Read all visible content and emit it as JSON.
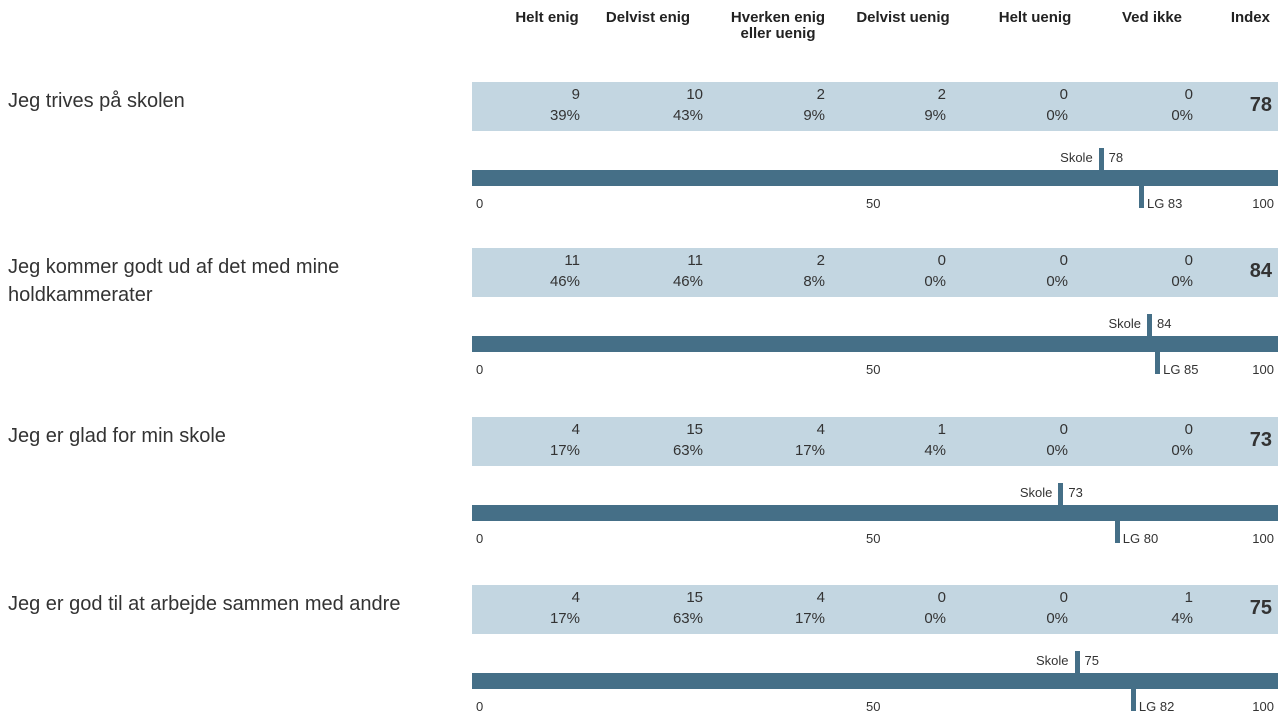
{
  "headers": {
    "helt_enig": "Helt enig",
    "delvist_enig": "Delvist enig",
    "hverken": "Hverken enig eller uenig",
    "delvist_uenig": "Delvist uenig",
    "helt_uenig": "Helt uenig",
    "ved_ikke": "Ved ikke",
    "index": "Index"
  },
  "gauge_labels": {
    "school": "Skole",
    "lg_prefix": "LG",
    "tick_0": "0",
    "tick_50": "50",
    "tick_100": "100"
  },
  "colors": {
    "table_row_bg": "#c3d6e1",
    "bar": "#456f87"
  },
  "chart_data": {
    "type": "table",
    "columns": [
      "Helt enig",
      "Delvist enig",
      "Hverken enig eller uenig",
      "Delvist uenig",
      "Helt uenig",
      "Ved ikke",
      "Index"
    ],
    "gauge_range": [
      0,
      100
    ],
    "rows": [
      {
        "question": "Jeg trives på skolen",
        "counts": [
          "9",
          "10",
          "2",
          "2",
          "0",
          "0"
        ],
        "percents": [
          "39%",
          "43%",
          "9%",
          "9%",
          "0%",
          "0%"
        ],
        "index": "78",
        "school_value": 78,
        "school_label": "78",
        "lg_value": 83,
        "lg_label": "LG 83"
      },
      {
        "question": "Jeg kommer godt ud af det med mine holdkammerater",
        "counts": [
          "11",
          "11",
          "2",
          "0",
          "0",
          "0"
        ],
        "percents": [
          "46%",
          "46%",
          "8%",
          "0%",
          "0%",
          "0%"
        ],
        "index": "84",
        "school_value": 84,
        "school_label": "84",
        "lg_value": 85,
        "lg_label": "LG 85"
      },
      {
        "question": "Jeg er glad for min skole",
        "counts": [
          "4",
          "15",
          "4",
          "1",
          "0",
          "0"
        ],
        "percents": [
          "17%",
          "63%",
          "17%",
          "4%",
          "0%",
          "0%"
        ],
        "index": "73",
        "school_value": 73,
        "school_label": "73",
        "lg_value": 80,
        "lg_label": "LG 80"
      },
      {
        "question": "Jeg er god til at arbejde sammen med andre",
        "counts": [
          "4",
          "15",
          "4",
          "0",
          "0",
          "1"
        ],
        "percents": [
          "17%",
          "63%",
          "17%",
          "0%",
          "0%",
          "4%"
        ],
        "index": "75",
        "school_value": 75,
        "school_label": "75",
        "lg_value": 82,
        "lg_label": "LG 82"
      }
    ]
  }
}
